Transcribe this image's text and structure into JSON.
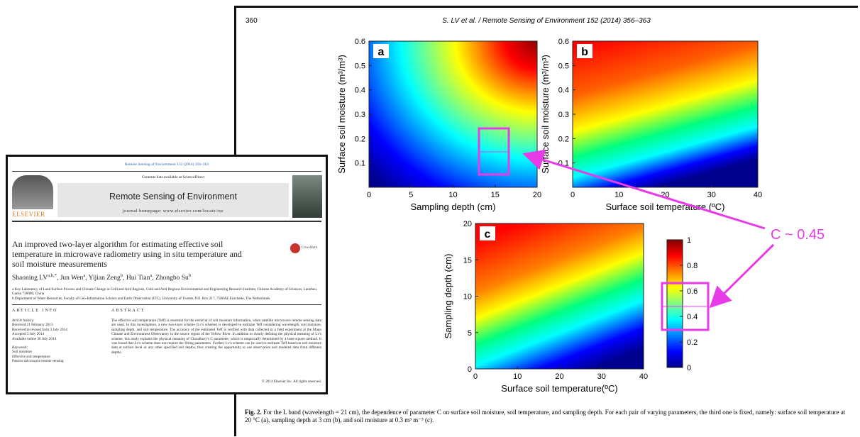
{
  "left_page": {
    "running_head": "Remote Sensing of Environment 152 (2014) 356–363",
    "contents_line": "Contents lists available at ScienceDirect",
    "journal": "Remote Sensing of Environment",
    "homepage": "journal homepage: www.elsevier.com/locate/rse",
    "publisher": "ELSEVIER",
    "crossmark": "CrossMark",
    "title": "An improved two-layer algorithm for estimating effective soil temperature in microwave radiometry using in situ temperature and soil moisture measurements",
    "authors": [
      {
        "name": "Shaoning LV",
        "sup": "a,b,*"
      },
      {
        "name": ", Jun Wen",
        "sup": "a"
      },
      {
        "name": ", Yijian Zeng",
        "sup": "b"
      },
      {
        "name": ", Hui Tian",
        "sup": "a"
      },
      {
        "name": ", Zhongbo Su",
        "sup": "b"
      }
    ],
    "affiliations": [
      "a Key Laboratory of Land Surface Process and Climate Change in Cold and Arid Regions, Cold and Arid Regions Environmental and Engineering Research Institute, Chinese Academy of Sciences, Lanzhou, Gansu 730000, China",
      "b Department of Water Resources, Faculty of Geo-Information Science and Earth Observation (ITC), University of Twente, P.O. Box 217, 7500AE Enschede, The Netherlands"
    ],
    "article_info": {
      "heading": "ARTICLE INFO",
      "history_label": "Article history:",
      "history": [
        "Received 21 February 2013",
        "Received in revised form 3 July 2014",
        "Accepted 3 July 2014",
        "Available online 30 July 2014"
      ],
      "keywords_label": "Keywords:",
      "keywords": [
        "Soil moisture",
        "Effective soil temperature",
        "Passive microwave remote sensing"
      ]
    },
    "abstract": {
      "heading": "ABSTRACT",
      "text": "The effective soil temperature (Teff) is essential for the retrieval of soil moisture information, when satellite microwave remote sensing data are used. In this investigation, a new two-layer scheme (Lv's scheme) is developed to estimate Teff considering wavelength, soil moisture, sampling depth, and soil temperature. The accuracy of the estimated Teff is verified with data collected in a field experiment at the Maqu Climate and Environment Observatory in the source region of the Yellow River. In addition to clearly defining the physical meaning of Lv's scheme, this study explains the physical meaning of Choudhury's C parameter, which is empirically determined by a least-square method. It was found that Lv's scheme does not require the fitting parameters. Further, Lv's scheme can be used to estimate Teff based on soil moisture data at surface level or any other specified soil depths, thus creating the opportunity to use observation and modeled data from different depths.",
      "copyright": "© 2014 Elsevier Inc. All rights reserved."
    }
  },
  "right_page": {
    "page_number": "360",
    "running_head": "S. LV et al. / Remote Sensing of Environment 152 (2014) 356–363",
    "panels": [
      {
        "letter": "a",
        "xlabel": "Sampling depth (cm)",
        "ylabel": "Surface soil moisture (m³/m³)",
        "xticks": [
          0,
          5,
          10,
          15,
          20
        ],
        "yticks": [
          0.1,
          0.2,
          0.3,
          0.4,
          0.5,
          0.6
        ]
      },
      {
        "letter": "b",
        "xlabel": "Surface soil temperature (ºC)",
        "ylabel": "Surface soil moisture (m³/m³)",
        "xticks": [
          0,
          10,
          20,
          30,
          40
        ],
        "yticks": [
          0.1,
          0.2,
          0.3,
          0.4,
          0.5,
          0.6
        ]
      },
      {
        "letter": "c",
        "xlabel": "Surface soil temperature(ºC)",
        "ylabel": "Sampling depth (cm)",
        "xticks": [
          0,
          10,
          20,
          30,
          40
        ],
        "yticks": [
          0,
          5,
          10,
          15,
          20
        ]
      }
    ],
    "colorbar_ticks": [
      0,
      0.2,
      0.4,
      0.6,
      0.8,
      1
    ],
    "annotation": "C ~ 0.45",
    "caption": {
      "label": "Fig. 2.",
      "text": "For the L band (wavelength = 21 cm), the dependence of parameter C on surface soil moisture, soil temperature, and sampling depth. For each pair of varying parameters, the third one is fixed, namely: surface soil temperature at 20 °C (a), sampling depth at 3 cm (b), and soil moisture at 0.3 m³ m⁻³ (c)."
    }
  }
}
